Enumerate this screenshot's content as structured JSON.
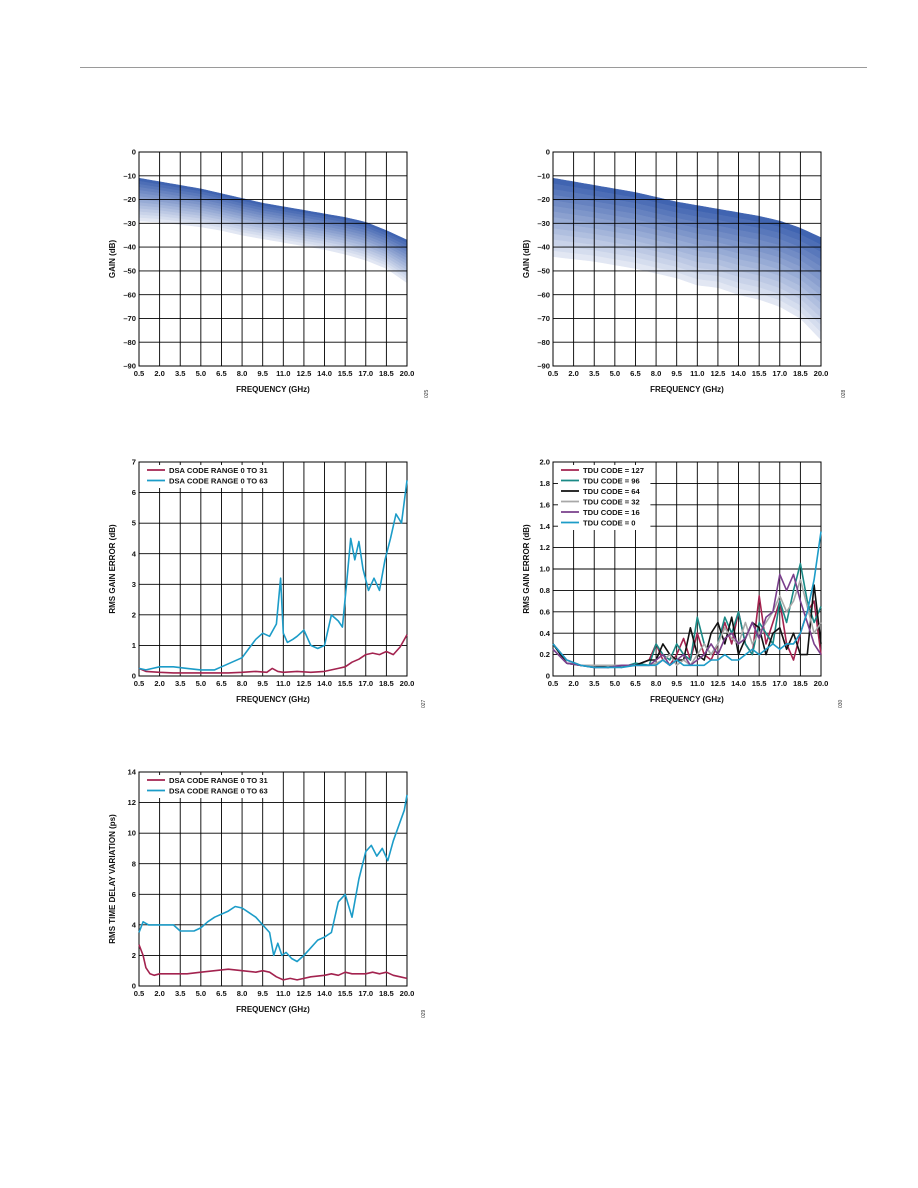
{
  "chart_data": [
    {
      "id": "gain-dsa",
      "type": "line",
      "xlabel": "FREQUENCY (GHz)",
      "ylabel": "GAIN (dB)",
      "xlim": [
        0.5,
        20
      ],
      "ylim": [
        -90,
        0
      ],
      "xticks": [
        "0.5",
        "2.0",
        "3.5",
        "5.0",
        "6.5",
        "8.0",
        "9.5",
        "11.0",
        "12.5",
        "14.0",
        "15.5",
        "17.0",
        "18.5",
        "20.0"
      ],
      "yticks": [
        "0",
        "–10",
        "–20",
        "–30",
        "–40",
        "–50",
        "–60",
        "–70",
        "–80",
        "–90"
      ],
      "grid": true,
      "fignum": "025",
      "band": {
        "x": [
          0.5,
          2.0,
          3.5,
          5.0,
          6.5,
          8.0,
          9.5,
          11.0,
          12.5,
          14.0,
          15.5,
          17.0,
          18.5,
          20.0
        ],
        "upper": [
          -11,
          -12.5,
          -14,
          -15.5,
          -17.5,
          -19.5,
          -21.5,
          -23,
          -24.5,
          -26,
          -27.5,
          -29.5,
          -33,
          -37
        ],
        "lower": [
          -29,
          -29.5,
          -30.5,
          -31.5,
          -33,
          -35,
          -36.5,
          -38,
          -39.5,
          -41,
          -43,
          -45.5,
          -49,
          -55
        ],
        "color_top": "#3a5fae",
        "color_bottom": "#e8ecf6"
      }
    },
    {
      "id": "gain-tdu",
      "type": "line",
      "xlabel": "FREQUENCY (GHz)",
      "ylabel": "GAIN (dB)",
      "xlim": [
        0.5,
        20
      ],
      "ylim": [
        -90,
        0
      ],
      "xticks": [
        "0.5",
        "2.0",
        "3.5",
        "5.0",
        "6.5",
        "8.0",
        "9.5",
        "11.0",
        "12.5",
        "14.0",
        "15.5",
        "17.0",
        "18.5",
        "20.0"
      ],
      "yticks": [
        "0",
        "–10",
        "–20",
        "–30",
        "–40",
        "–50",
        "–60",
        "–70",
        "–80",
        "–90"
      ],
      "grid": true,
      "fignum": "028",
      "band": {
        "x": [
          0.5,
          2.0,
          3.5,
          5.0,
          6.5,
          8.0,
          9.5,
          11.0,
          12.5,
          14.0,
          15.5,
          17.0,
          18.5,
          20.0
        ],
        "upper": [
          -11,
          -12.5,
          -14,
          -15.5,
          -17,
          -19,
          -21,
          -22.5,
          -24,
          -25.5,
          -27,
          -29,
          -32,
          -36
        ],
        "lower": [
          -44,
          -45,
          -46,
          -47.5,
          -49,
          -51,
          -53,
          -56,
          -57,
          -60,
          -62,
          -65,
          -70,
          -79
        ],
        "color_top": "#3a5fae",
        "color_bottom": "#e8ecf6"
      }
    },
    {
      "id": "rms-gain-error-dsa",
      "type": "line",
      "xlabel": "FREQUENCY (GHz)",
      "ylabel": "RMS GAIN ERROR (dB)",
      "xlim": [
        0.5,
        20
      ],
      "ylim": [
        0,
        7
      ],
      "xticks": [
        "0.5",
        "2.0",
        "3.5",
        "5.0",
        "6.5",
        "8.0",
        "9.5",
        "11.0",
        "12.5",
        "14.0",
        "15.5",
        "17.0",
        "18.5",
        "20.0"
      ],
      "yticks": [
        "7",
        "6",
        "5",
        "4",
        "3",
        "2",
        "1",
        "0"
      ],
      "grid": true,
      "fignum": "027",
      "legend": "top-left",
      "series": [
        {
          "name": "DSA CODE RANGE 0 TO 31",
          "color": "#a3234f",
          "x": [
            0.5,
            1.0,
            2.0,
            3.0,
            4.0,
            5.0,
            6.0,
            7.0,
            8.0,
            9.0,
            9.8,
            10.2,
            10.6,
            11.0,
            12.0,
            13.0,
            14.0,
            14.5,
            15.0,
            15.5,
            16.0,
            16.5,
            17.0,
            17.5,
            18.0,
            18.5,
            19.0,
            19.5,
            20.0
          ],
          "values": [
            0.25,
            0.15,
            0.12,
            0.1,
            0.1,
            0.1,
            0.1,
            0.1,
            0.12,
            0.15,
            0.12,
            0.25,
            0.15,
            0.12,
            0.15,
            0.12,
            0.15,
            0.2,
            0.25,
            0.3,
            0.45,
            0.55,
            0.7,
            0.75,
            0.7,
            0.8,
            0.7,
            0.95,
            1.35
          ]
        },
        {
          "name": "DSA CODE RANGE 0 TO 63",
          "color": "#1c9cc8",
          "x": [
            0.5,
            1.0,
            1.5,
            2.0,
            3.0,
            4.0,
            5.0,
            6.0,
            6.5,
            7.0,
            8.0,
            8.5,
            9.0,
            9.5,
            10.0,
            10.5,
            10.8,
            11.0,
            11.3,
            11.7,
            12.0,
            12.5,
            13.0,
            13.5,
            14.0,
            14.5,
            15.0,
            15.3,
            15.6,
            15.9,
            16.2,
            16.5,
            16.8,
            17.2,
            17.6,
            18.0,
            18.4,
            18.8,
            19.2,
            19.6,
            20.0
          ],
          "values": [
            0.25,
            0.2,
            0.25,
            0.3,
            0.3,
            0.25,
            0.2,
            0.2,
            0.3,
            0.4,
            0.6,
            0.9,
            1.2,
            1.4,
            1.3,
            1.7,
            3.2,
            1.4,
            1.1,
            1.2,
            1.3,
            1.5,
            1.0,
            0.9,
            1.0,
            2.0,
            1.8,
            1.6,
            3.0,
            4.5,
            3.8,
            4.4,
            3.5,
            2.8,
            3.2,
            2.8,
            3.8,
            4.5,
            5.3,
            5.0,
            6.4
          ]
        }
      ]
    },
    {
      "id": "rms-gain-error-tdu",
      "type": "line",
      "xlabel": "FREQUENCY (GHz)",
      "ylabel": "RMS GAIN ERROR (dB)",
      "xlim": [
        0.5,
        20
      ],
      "ylim": [
        0,
        2.0
      ],
      "xticks": [
        "0.5",
        "2.0",
        "3.5",
        "5.0",
        "6.5",
        "8.0",
        "9.5",
        "11.0",
        "12.5",
        "14.0",
        "15.5",
        "17.0",
        "18.5",
        "20.0"
      ],
      "yticks": [
        "2.0",
        "1.8",
        "1.6",
        "1.4",
        "1.2",
        "1.0",
        "0.8",
        "0.6",
        "0.4",
        "0.2",
        "0"
      ],
      "grid": true,
      "fignum": "030",
      "legend": "top-left",
      "series": [
        {
          "name": "TDU CODE = 127",
          "color": "#a3234f",
          "x": [
            0.5,
            1.5,
            2.5,
            3.5,
            4.5,
            5.5,
            6.5,
            7.5,
            8.0,
            8.5,
            9.0,
            9.5,
            10.0,
            10.5,
            11.0,
            11.5,
            12.0,
            12.5,
            13.0,
            13.5,
            14.0,
            14.5,
            15.0,
            15.5,
            16.0,
            16.5,
            17.0,
            17.5,
            18.0,
            18.5,
            19.0,
            19.5,
            20.0
          ],
          "values": [
            0.3,
            0.15,
            0.1,
            0.1,
            0.1,
            0.1,
            0.1,
            0.15,
            0.3,
            0.15,
            0.1,
            0.2,
            0.35,
            0.15,
            0.4,
            0.2,
            0.15,
            0.3,
            0.5,
            0.3,
            0.6,
            0.3,
            0.2,
            0.75,
            0.3,
            0.5,
            0.7,
            0.3,
            0.15,
            0.4,
            0.6,
            0.7,
            0.2
          ]
        },
        {
          "name": "TDU CODE = 96",
          "color": "#1a8a86",
          "x": [
            0.5,
            1.5,
            2.5,
            3.5,
            4.5,
            5.5,
            6.5,
            7.5,
            8.0,
            8.5,
            9.0,
            9.5,
            10.0,
            10.5,
            11.0,
            11.5,
            12.0,
            12.5,
            13.0,
            13.5,
            14.0,
            14.5,
            15.0,
            15.5,
            16.0,
            16.5,
            17.0,
            17.5,
            18.0,
            18.5,
            19.0,
            19.5,
            20.0
          ],
          "values": [
            0.3,
            0.12,
            0.1,
            0.08,
            0.1,
            0.08,
            0.12,
            0.1,
            0.3,
            0.2,
            0.15,
            0.3,
            0.2,
            0.15,
            0.55,
            0.3,
            0.2,
            0.3,
            0.55,
            0.4,
            0.6,
            0.3,
            0.2,
            0.5,
            0.4,
            0.3,
            0.7,
            0.5,
            0.8,
            1.05,
            0.7,
            0.5,
            0.65
          ]
        },
        {
          "name": "TDU CODE = 64",
          "color": "#111111",
          "x": [
            0.5,
            1.5,
            2.5,
            3.5,
            4.5,
            5.5,
            6.5,
            7.5,
            8.0,
            8.5,
            9.0,
            9.5,
            10.0,
            10.5,
            11.0,
            11.5,
            12.0,
            12.5,
            13.0,
            13.5,
            14.0,
            14.5,
            15.0,
            15.5,
            16.0,
            16.5,
            17.0,
            17.5,
            18.0,
            18.5,
            19.0,
            19.5,
            20.0
          ],
          "values": [
            0.3,
            0.12,
            0.1,
            0.1,
            0.08,
            0.1,
            0.1,
            0.15,
            0.15,
            0.3,
            0.2,
            0.15,
            0.15,
            0.45,
            0.2,
            0.15,
            0.4,
            0.5,
            0.3,
            0.55,
            0.2,
            0.35,
            0.5,
            0.45,
            0.2,
            0.4,
            0.45,
            0.25,
            0.4,
            0.2,
            0.2,
            0.85,
            0.3
          ]
        },
        {
          "name": "TDU CODE = 32",
          "color": "#a8a8a8",
          "x": [
            0.5,
            1.5,
            2.5,
            3.5,
            4.5,
            5.5,
            6.5,
            7.5,
            8.0,
            8.5,
            9.0,
            9.5,
            10.0,
            10.5,
            11.0,
            11.5,
            12.0,
            12.5,
            13.0,
            13.5,
            14.0,
            14.5,
            15.0,
            15.5,
            16.0,
            16.5,
            17.0,
            17.5,
            18.0,
            18.5,
            19.0,
            19.5,
            20.0
          ],
          "values": [
            0.25,
            0.12,
            0.1,
            0.1,
            0.1,
            0.1,
            0.1,
            0.1,
            0.12,
            0.15,
            0.2,
            0.1,
            0.15,
            0.1,
            0.2,
            0.3,
            0.2,
            0.3,
            0.45,
            0.35,
            0.3,
            0.5,
            0.3,
            0.4,
            0.5,
            0.6,
            0.75,
            0.6,
            0.7,
            0.9,
            0.65,
            0.4,
            0.5
          ]
        },
        {
          "name": "TDU CODE = 16",
          "color": "#7a3f8c",
          "x": [
            0.5,
            1.5,
            2.5,
            3.5,
            4.5,
            5.5,
            6.5,
            7.5,
            8.0,
            8.5,
            9.0,
            9.5,
            10.0,
            10.5,
            11.0,
            11.5,
            12.0,
            12.5,
            13.0,
            13.5,
            14.0,
            14.5,
            15.0,
            15.5,
            16.0,
            16.5,
            17.0,
            17.5,
            18.0,
            18.5,
            19.0,
            19.5,
            20.0
          ],
          "values": [
            0.25,
            0.12,
            0.1,
            0.08,
            0.08,
            0.1,
            0.1,
            0.1,
            0.15,
            0.2,
            0.1,
            0.15,
            0.2,
            0.1,
            0.15,
            0.2,
            0.3,
            0.2,
            0.35,
            0.4,
            0.3,
            0.35,
            0.5,
            0.35,
            0.55,
            0.6,
            0.95,
            0.8,
            0.95,
            0.7,
            0.5,
            0.3,
            0.2
          ]
        },
        {
          "name": "TDU CODE = 0",
          "color": "#1c9cc8",
          "x": [
            0.5,
            1.5,
            2.5,
            3.5,
            4.5,
            5.5,
            6.5,
            7.5,
            8.0,
            8.5,
            9.0,
            9.5,
            10.0,
            10.5,
            11.0,
            11.5,
            12.0,
            12.5,
            13.0,
            13.5,
            14.0,
            14.5,
            15.0,
            15.5,
            16.0,
            16.5,
            17.0,
            17.5,
            18.0,
            18.5,
            19.0,
            19.5,
            20.0
          ],
          "values": [
            0.3,
            0.15,
            0.1,
            0.08,
            0.08,
            0.08,
            0.1,
            0.1,
            0.1,
            0.15,
            0.1,
            0.15,
            0.1,
            0.1,
            0.1,
            0.1,
            0.15,
            0.15,
            0.2,
            0.15,
            0.15,
            0.2,
            0.25,
            0.2,
            0.25,
            0.3,
            0.25,
            0.3,
            0.3,
            0.4,
            0.6,
            0.9,
            1.35
          ]
        }
      ]
    },
    {
      "id": "rms-time-delay-variation",
      "type": "line",
      "xlabel": "FREQUENCY (GHz)",
      "ylabel": "RMS TIME DELAY VARIATION (ps)",
      "xlim": [
        0.5,
        20
      ],
      "ylim": [
        0,
        14
      ],
      "xticks": [
        "0.5",
        "2.0",
        "3.5",
        "5.0",
        "6.5",
        "8.0",
        "9.5",
        "11.0",
        "12.5",
        "14.0",
        "15.5",
        "17.0",
        "18.5",
        "20.0"
      ],
      "yticks": [
        "14",
        "12",
        "10",
        "8",
        "6",
        "4",
        "2",
        "0"
      ],
      "grid": true,
      "fignum": "029",
      "legend": "top-left",
      "series": [
        {
          "name": "DSA CODE RANGE 0 TO 31",
          "color": "#a3234f",
          "x": [
            0.5,
            0.8,
            1.0,
            1.3,
            1.6,
            2.0,
            3.0,
            4.0,
            5.0,
            6.0,
            7.0,
            8.0,
            9.0,
            9.5,
            10.0,
            10.5,
            11.0,
            11.5,
            12.0,
            12.5,
            13.0,
            14.0,
            14.5,
            15.0,
            15.5,
            16.0,
            17.0,
            17.5,
            18.0,
            18.5,
            19.0,
            19.5,
            20.0
          ],
          "values": [
            2.7,
            2.0,
            1.2,
            0.8,
            0.7,
            0.8,
            0.8,
            0.8,
            0.9,
            1.0,
            1.1,
            1.0,
            0.9,
            1.0,
            0.9,
            0.6,
            0.4,
            0.5,
            0.4,
            0.5,
            0.6,
            0.7,
            0.8,
            0.7,
            0.9,
            0.8,
            0.8,
            0.9,
            0.8,
            0.9,
            0.7,
            0.6,
            0.5
          ]
        },
        {
          "name": "DSA CODE RANGE 0 TO 63",
          "color": "#1c9cc8",
          "x": [
            0.5,
            0.8,
            1.2,
            2.0,
            3.0,
            3.5,
            4.0,
            4.5,
            5.0,
            5.5,
            6.0,
            7.0,
            7.5,
            8.0,
            8.5,
            9.0,
            9.5,
            10.0,
            10.3,
            10.6,
            10.9,
            11.2,
            11.6,
            12.0,
            12.5,
            13.0,
            13.5,
            14.0,
            14.5,
            15.0,
            15.5,
            16.0,
            16.5,
            17.0,
            17.4,
            17.8,
            18.2,
            18.6,
            19.0,
            19.4,
            19.8,
            20.0
          ],
          "values": [
            3.5,
            4.2,
            4.0,
            4.0,
            4.0,
            3.6,
            3.6,
            3.6,
            3.8,
            4.2,
            4.5,
            4.9,
            5.2,
            5.1,
            4.8,
            4.5,
            4.0,
            3.5,
            2.0,
            2.8,
            2.0,
            2.2,
            1.8,
            1.6,
            2.0,
            2.5,
            3.0,
            3.2,
            3.5,
            5.5,
            6.0,
            4.5,
            7.0,
            8.8,
            9.2,
            8.5,
            9.0,
            8.2,
            9.5,
            10.5,
            11.5,
            12.5
          ]
        }
      ]
    }
  ]
}
